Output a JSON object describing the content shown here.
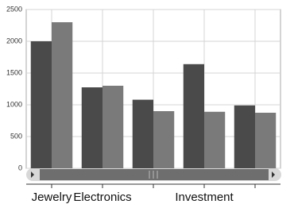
{
  "chart_data": {
    "type": "bar",
    "categories": [
      "Jewelry",
      "Electronics",
      null,
      "Investment",
      null
    ],
    "series": [
      {
        "color": "#4a4a4a",
        "values": [
          2000,
          1275,
          1080,
          1640,
          990
        ]
      },
      {
        "color": "#7a7a7a",
        "values": [
          2300,
          1300,
          900,
          890,
          875
        ]
      }
    ],
    "ylim": [
      0,
      2500
    ],
    "yticks": [
      0,
      500,
      1000,
      1500,
      2000,
      2500
    ],
    "grid": true
  }
}
